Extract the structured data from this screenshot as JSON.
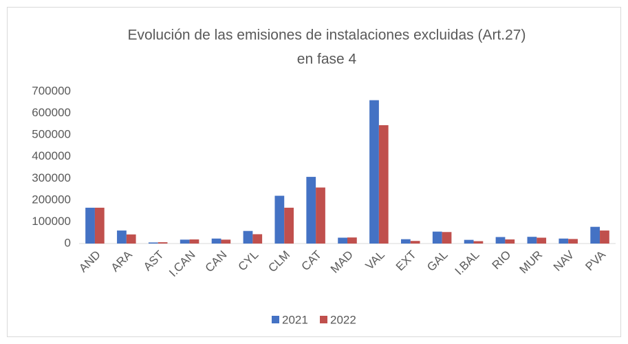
{
  "chart_data": {
    "type": "bar",
    "title": [
      "Evolución de las emisiones de instalaciones excluidas (Art.27)",
      "en fase 4"
    ],
    "categories": [
      "AND",
      "ARA",
      "AST",
      "I.CAN",
      "CAN",
      "CYL",
      "CLM",
      "CAT",
      "MAD",
      "VAL",
      "EXT",
      "GAL",
      "I.BAL",
      "RIO",
      "MUR",
      "NAV",
      "PVA"
    ],
    "series": [
      {
        "name": "2021",
        "color": "#4472c4",
        "values": [
          165000,
          60000,
          5000,
          18000,
          23000,
          58000,
          220000,
          307000,
          27000,
          660000,
          20000,
          55000,
          17000,
          30000,
          31000,
          23000,
          77000
        ]
      },
      {
        "name": "2022",
        "color": "#c0504d",
        "values": [
          165000,
          42000,
          6000,
          19000,
          18000,
          43000,
          165000,
          258000,
          28000,
          545000,
          12000,
          53000,
          11000,
          19000,
          27000,
          21000,
          60000
        ]
      }
    ],
    "ylim": [
      0,
      700000
    ],
    "yticks": [
      0,
      100000,
      200000,
      300000,
      400000,
      500000,
      600000,
      700000
    ],
    "grid": false,
    "legend": "bottom"
  }
}
